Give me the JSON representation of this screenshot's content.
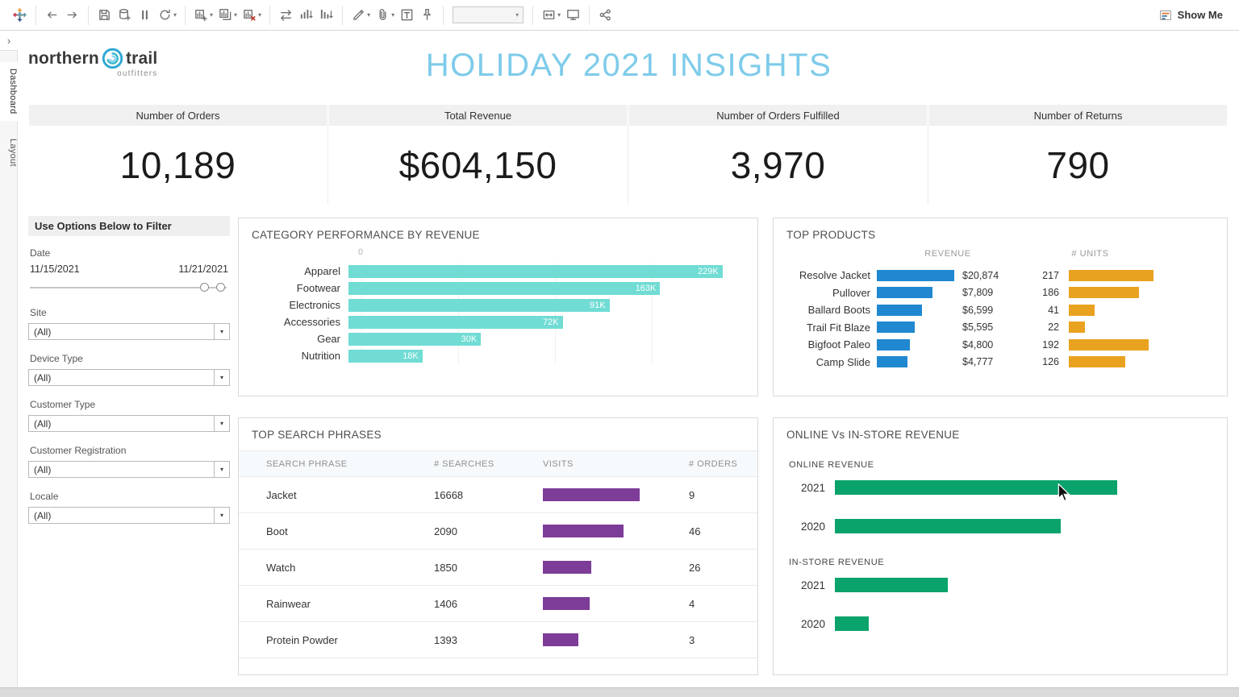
{
  "toolbar": {
    "show_me_label": "Show Me",
    "groups": [
      {
        "items": [
          {
            "icon": "tableau-logo"
          }
        ]
      },
      {
        "items": [
          {
            "icon": "undo"
          },
          {
            "icon": "redo"
          }
        ]
      },
      {
        "items": [
          {
            "icon": "save"
          },
          {
            "icon": "new-data-source"
          },
          {
            "icon": "pause-auto-updates"
          },
          {
            "icon": "run-auto-updates",
            "caret": true
          }
        ]
      },
      {
        "items": [
          {
            "icon": "new-worksheet",
            "caret": true
          },
          {
            "icon": "duplicate-sheet",
            "caret": true
          },
          {
            "icon": "clear-sheet",
            "caret": true
          }
        ]
      },
      {
        "items": [
          {
            "icon": "swap-rows-columns"
          },
          {
            "icon": "sort-ascending"
          },
          {
            "icon": "sort-descending"
          }
        ]
      },
      {
        "items": [
          {
            "icon": "highlight",
            "caret": true
          },
          {
            "icon": "group-members",
            "caret": true
          },
          {
            "icon": "show-mark-labels"
          },
          {
            "icon": "fix-axes"
          }
        ]
      },
      {
        "items": [
          {
            "icon": "fit-selector",
            "type": "combo"
          }
        ]
      },
      {
        "items": [
          {
            "icon": "cell-size",
            "caret": true
          },
          {
            "icon": "presentation-mode"
          }
        ]
      },
      {
        "items": [
          {
            "icon": "share"
          }
        ]
      }
    ]
  },
  "side_tabs": {
    "dashboard": "Dashboard",
    "layout": "Layout"
  },
  "header": {
    "logo": {
      "word1": "northern",
      "word2": "trail",
      "sub": "outfitters"
    },
    "title": "HOLIDAY 2021 INSIGHTS"
  },
  "kpis": [
    {
      "label": "Number of Orders",
      "value": "10,189"
    },
    {
      "label": "Total Revenue",
      "value": "$604,150"
    },
    {
      "label": "Number of Orders Fulfilled",
      "value": "3,970"
    },
    {
      "label": "Number of Returns",
      "value": "790"
    }
  ],
  "filter_panel": {
    "title": "Use Options Below to Filter",
    "date_filter": {
      "label": "Date",
      "start": "11/15/2021",
      "end": "11/21/2021"
    },
    "dropdown_filters": [
      {
        "label": "Site",
        "value": "(All)"
      },
      {
        "label": "Device Type",
        "value": "(All)"
      },
      {
        "label": "Customer Type",
        "value": "(All)"
      },
      {
        "label": "Customer Registration",
        "value": "(All)"
      },
      {
        "label": "Locale",
        "value": "(All)"
      }
    ]
  },
  "chart_data": [
    {
      "id": "category_performance",
      "type": "bar",
      "orientation": "horizontal",
      "title": "CATEGORY PERFORMANCE BY REVENUE",
      "axis_origin_label": "0",
      "bar_color": "#70dcd4",
      "categories": [
        "Apparel",
        "Footwear",
        "Electronics",
        "Accessories",
        "Gear",
        "Nutrition"
      ],
      "values": [
        229000,
        163000,
        91000,
        72000,
        30000,
        18000
      ],
      "bar_labels": [
        "229K",
        "163K",
        "91K",
        "72K",
        "30K",
        "18K"
      ],
      "bar_pct": [
        96,
        80,
        67,
        55,
        34,
        19
      ]
    },
    {
      "id": "top_products",
      "type": "bar",
      "title": "TOP PRODUCTS",
      "col_headers": [
        "REVENUE",
        "# UNITS"
      ],
      "revenue_color": "#1f88d0",
      "units_color": "#e9a21f",
      "rows": [
        {
          "product": "Resolve Jacket",
          "revenue": "$20,874",
          "revenue_pct": 100,
          "units": "217",
          "units_pct": 100
        },
        {
          "product": "Pullover",
          "revenue": "$7,809",
          "revenue_pct": 72,
          "units": "186",
          "units_pct": 83
        },
        {
          "product": "Ballard Boots",
          "revenue": "$6,599",
          "revenue_pct": 58,
          "units": "41",
          "units_pct": 30
        },
        {
          "product": "Trail Fit Blaze",
          "revenue": "$5,595",
          "revenue_pct": 49,
          "units": "22",
          "units_pct": 19
        },
        {
          "product": "Bigfoot Paleo",
          "revenue": "$4,800",
          "revenue_pct": 43,
          "units": "192",
          "units_pct": 94
        },
        {
          "product": "Camp Slide",
          "revenue": "$4,777",
          "revenue_pct": 40,
          "units": "126",
          "units_pct": 67
        }
      ]
    },
    {
      "id": "top_search_phrases",
      "type": "table",
      "title": "TOP SEARCH PHRASES",
      "columns": [
        "SEARCH PHRASE",
        "# SEARCHES",
        "VISITS",
        "# ORDERS"
      ],
      "visits_color": "#7d3c98",
      "rows": [
        {
          "phrase": "Jacket",
          "searches": "16668",
          "visits_pct": 100,
          "orders": "9"
        },
        {
          "phrase": "Boot",
          "searches": "2090",
          "visits_pct": 83,
          "orders": "46"
        },
        {
          "phrase": "Watch",
          "searches": "1850",
          "visits_pct": 50,
          "orders": "26"
        },
        {
          "phrase": "Rainwear",
          "searches": "1406",
          "visits_pct": 48,
          "orders": "4"
        },
        {
          "phrase": "Protein Powder",
          "searches": "1393",
          "visits_pct": 37,
          "orders": "3"
        }
      ]
    },
    {
      "id": "online_vs_instore",
      "type": "bar",
      "orientation": "horizontal",
      "title": "ONLINE Vs IN-STORE REVENUE",
      "bar_color": "#0aa36c",
      "groups": [
        {
          "label": "ONLINE REVENUE",
          "bars": [
            {
              "year": "2021",
              "pct": 75
            },
            {
              "year": "2020",
              "pct": 60
            }
          ]
        },
        {
          "label": "IN-STORE REVENUE",
          "bars": [
            {
              "year": "2021",
              "pct": 30
            },
            {
              "year": "2020",
              "pct": 9
            }
          ]
        }
      ]
    }
  ]
}
